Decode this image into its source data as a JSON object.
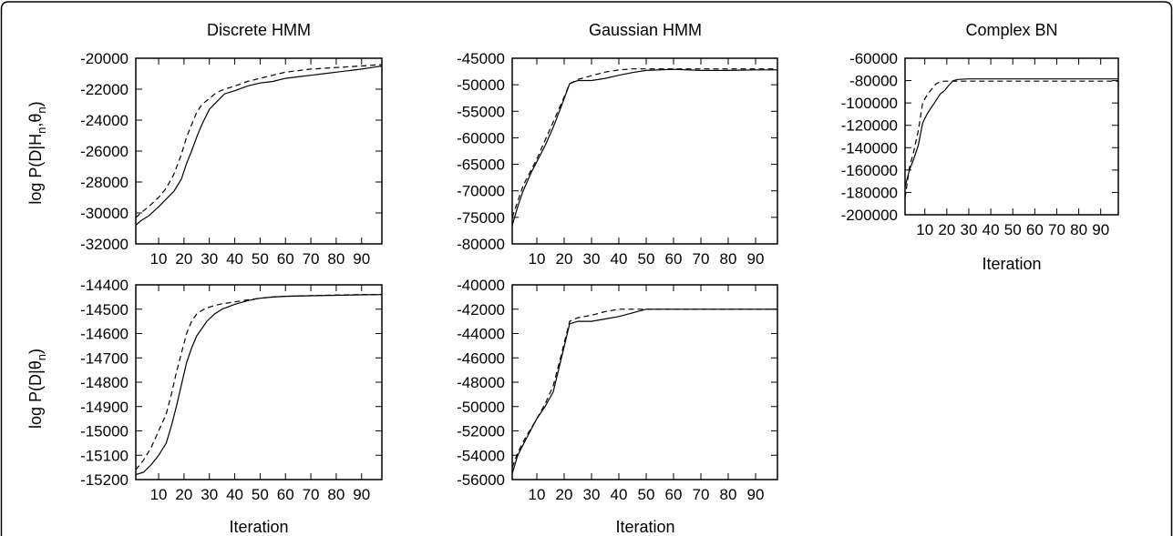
{
  "figure": {
    "frame_color": "#000000",
    "line_color": "#000000"
  },
  "chart_data": [
    {
      "type": "line",
      "title": "Discrete HMM",
      "xlabel": "",
      "ylabel": "log P(D|H_n,θ_n)",
      "xlim": [
        1,
        98
      ],
      "ylim": [
        -32000,
        -20000
      ],
      "xticks": [
        10,
        20,
        30,
        40,
        50,
        60,
        70,
        80,
        90
      ],
      "yticks": [
        -20000,
        -22000,
        -24000,
        -26000,
        -28000,
        -30000,
        -32000
      ],
      "series": [
        {
          "style": "solid",
          "x": [
            1,
            3,
            6,
            10,
            13,
            16,
            19,
            21,
            23,
            25,
            27,
            30,
            33,
            36,
            40,
            45,
            50,
            55,
            60,
            65,
            70,
            75,
            80,
            85,
            90,
            94,
            98
          ],
          "y": [
            -30800,
            -30500,
            -30200,
            -29600,
            -29100,
            -28600,
            -27800,
            -26800,
            -26000,
            -25100,
            -24300,
            -23300,
            -22800,
            -22300,
            -22100,
            -21800,
            -21600,
            -21500,
            -21300,
            -21200,
            -21100,
            -21000,
            -20900,
            -20800,
            -20700,
            -20600,
            -20500
          ]
        },
        {
          "style": "dashed",
          "x": [
            1,
            3,
            6,
            10,
            13,
            16,
            19,
            21,
            23,
            25,
            27,
            30,
            33,
            36,
            40,
            45,
            50,
            55,
            60,
            65,
            70,
            75,
            80,
            85,
            90,
            94,
            98
          ],
          "y": [
            -30300,
            -30000,
            -29600,
            -29000,
            -28400,
            -27500,
            -26200,
            -25100,
            -24300,
            -23500,
            -23000,
            -22600,
            -22200,
            -22000,
            -21800,
            -21500,
            -21300,
            -21100,
            -20900,
            -20800,
            -20700,
            -20650,
            -20600,
            -20550,
            -20500,
            -20450,
            -20400
          ]
        }
      ]
    },
    {
      "type": "line",
      "title": "Gaussian HMM",
      "xlabel": "",
      "ylabel": "",
      "xlim": [
        1,
        98
      ],
      "ylim": [
        -80000,
        -45000
      ],
      "xticks": [
        10,
        20,
        30,
        40,
        50,
        60,
        70,
        80,
        90
      ],
      "yticks": [
        -45000,
        -50000,
        -55000,
        -60000,
        -65000,
        -70000,
        -75000,
        -80000
      ],
      "series": [
        {
          "style": "solid",
          "x": [
            1,
            3,
            5,
            8,
            10,
            13,
            16,
            19,
            22,
            25,
            30,
            35,
            40,
            45,
            50,
            60,
            70,
            80,
            90,
            98
          ],
          "y": [
            -76500,
            -73000,
            -70000,
            -66500,
            -64500,
            -61500,
            -58000,
            -54000,
            -49800,
            -49200,
            -49200,
            -48800,
            -48200,
            -47700,
            -47300,
            -47100,
            -47300,
            -47300,
            -47200,
            -47200
          ]
        },
        {
          "style": "dashed",
          "x": [
            1,
            3,
            5,
            8,
            10,
            13,
            16,
            19,
            22,
            25,
            30,
            35,
            40,
            45,
            50,
            60,
            70,
            80,
            90,
            98
          ],
          "y": [
            -75000,
            -72000,
            -69000,
            -66000,
            -64000,
            -60500,
            -57000,
            -53500,
            -49800,
            -49000,
            -48300,
            -47600,
            -47200,
            -47000,
            -47000,
            -47000,
            -47000,
            -47000,
            -47000,
            -47000
          ]
        }
      ]
    },
    {
      "type": "line",
      "title": "Complex BN",
      "xlabel": "Iteration",
      "ylabel": "",
      "xlim": [
        1,
        98
      ],
      "ylim": [
        -200000,
        -60000
      ],
      "xticks": [
        10,
        20,
        30,
        40,
        50,
        60,
        70,
        80,
        90
      ],
      "yticks": [
        -60000,
        -80000,
        -100000,
        -120000,
        -140000,
        -160000,
        -180000,
        -200000
      ],
      "series": [
        {
          "style": "solid",
          "x": [
            1,
            3,
            5,
            7,
            9,
            11,
            13,
            15,
            17,
            19,
            21,
            23,
            25,
            30,
            40,
            50,
            60,
            70,
            80,
            90,
            98
          ],
          "y": [
            -175000,
            -160000,
            -150000,
            -138000,
            -118000,
            -110000,
            -104000,
            -98000,
            -92000,
            -89000,
            -84000,
            -80000,
            -79000,
            -78500,
            -78500,
            -78500,
            -78500,
            -78500,
            -78500,
            -78500,
            -78500
          ]
        },
        {
          "style": "dashed",
          "x": [
            1,
            3,
            5,
            7,
            9,
            11,
            13,
            15,
            17,
            19,
            21,
            23,
            25,
            30,
            40,
            50,
            60,
            70,
            80,
            90,
            98
          ],
          "y": [
            -185000,
            -158000,
            -143000,
            -125000,
            -100000,
            -93000,
            -88000,
            -83000,
            -81000,
            -80500,
            -80500,
            -80500,
            -80500,
            -80500,
            -80500,
            -80500,
            -80500,
            -80500,
            -80500,
            -80500,
            -80500
          ]
        }
      ]
    },
    {
      "type": "line",
      "title": "",
      "xlabel": "Iteration",
      "ylabel": "log P(D|θ_n)",
      "xlim": [
        1,
        98
      ],
      "ylim": [
        -15200,
        -14400
      ],
      "xticks": [
        10,
        20,
        30,
        40,
        50,
        60,
        70,
        80,
        90
      ],
      "yticks": [
        -14400,
        -14500,
        -14600,
        -14700,
        -14800,
        -14900,
        -15000,
        -15100,
        -15200
      ],
      "series": [
        {
          "style": "solid",
          "x": [
            1,
            4,
            7,
            10,
            13,
            15,
            17,
            19,
            21,
            23,
            25,
            27,
            29,
            32,
            35,
            40,
            45,
            50,
            55,
            60,
            70,
            80,
            90,
            98
          ],
          "y": [
            -15180,
            -15170,
            -15140,
            -15100,
            -15050,
            -14980,
            -14900,
            -14810,
            -14720,
            -14660,
            -14610,
            -14580,
            -14550,
            -14520,
            -14500,
            -14480,
            -14465,
            -14455,
            -14450,
            -14447,
            -14445,
            -14443,
            -14441,
            -14440
          ]
        },
        {
          "style": "dashed",
          "x": [
            1,
            4,
            7,
            10,
            13,
            15,
            17,
            19,
            21,
            23,
            25,
            27,
            29,
            32,
            35,
            40,
            45,
            50,
            55,
            60,
            70,
            80,
            90,
            98
          ],
          "y": [
            -15160,
            -15120,
            -15070,
            -15000,
            -14930,
            -14850,
            -14760,
            -14680,
            -14600,
            -14550,
            -14520,
            -14505,
            -14495,
            -14485,
            -14478,
            -14470,
            -14462,
            -14455,
            -14450,
            -14447,
            -14444,
            -14442,
            -14440,
            -14440
          ]
        }
      ]
    },
    {
      "type": "line",
      "title": "",
      "xlabel": "Iteration",
      "ylabel": "",
      "xlim": [
        1,
        98
      ],
      "ylim": [
        -56000,
        -40000
      ],
      "xticks": [
        10,
        20,
        30,
        40,
        50,
        60,
        70,
        80,
        90
      ],
      "yticks": [
        -40000,
        -42000,
        -44000,
        -46000,
        -48000,
        -50000,
        -52000,
        -54000,
        -56000
      ],
      "series": [
        {
          "style": "solid",
          "x": [
            1,
            3,
            6,
            10,
            13,
            16,
            19,
            22,
            25,
            30,
            35,
            40,
            45,
            50,
            55,
            60,
            70,
            80,
            90,
            98
          ],
          "y": [
            -55500,
            -54000,
            -52700,
            -51000,
            -50000,
            -48800,
            -46000,
            -43200,
            -43000,
            -43000,
            -42800,
            -42600,
            -42300,
            -42000,
            -42000,
            -42000,
            -42000,
            -42000,
            -42000,
            -42000
          ]
        },
        {
          "style": "dashed",
          "x": [
            1,
            3,
            6,
            10,
            13,
            16,
            19,
            22,
            25,
            30,
            35,
            40,
            45,
            50,
            55,
            60,
            70,
            80,
            90,
            98
          ],
          "y": [
            -55000,
            -53800,
            -52500,
            -51000,
            -49800,
            -48300,
            -45700,
            -43000,
            -42700,
            -42500,
            -42200,
            -42000,
            -42000,
            -42000,
            -42000,
            -42000,
            -42000,
            -42000,
            -42000,
            -42000
          ]
        }
      ]
    }
  ]
}
